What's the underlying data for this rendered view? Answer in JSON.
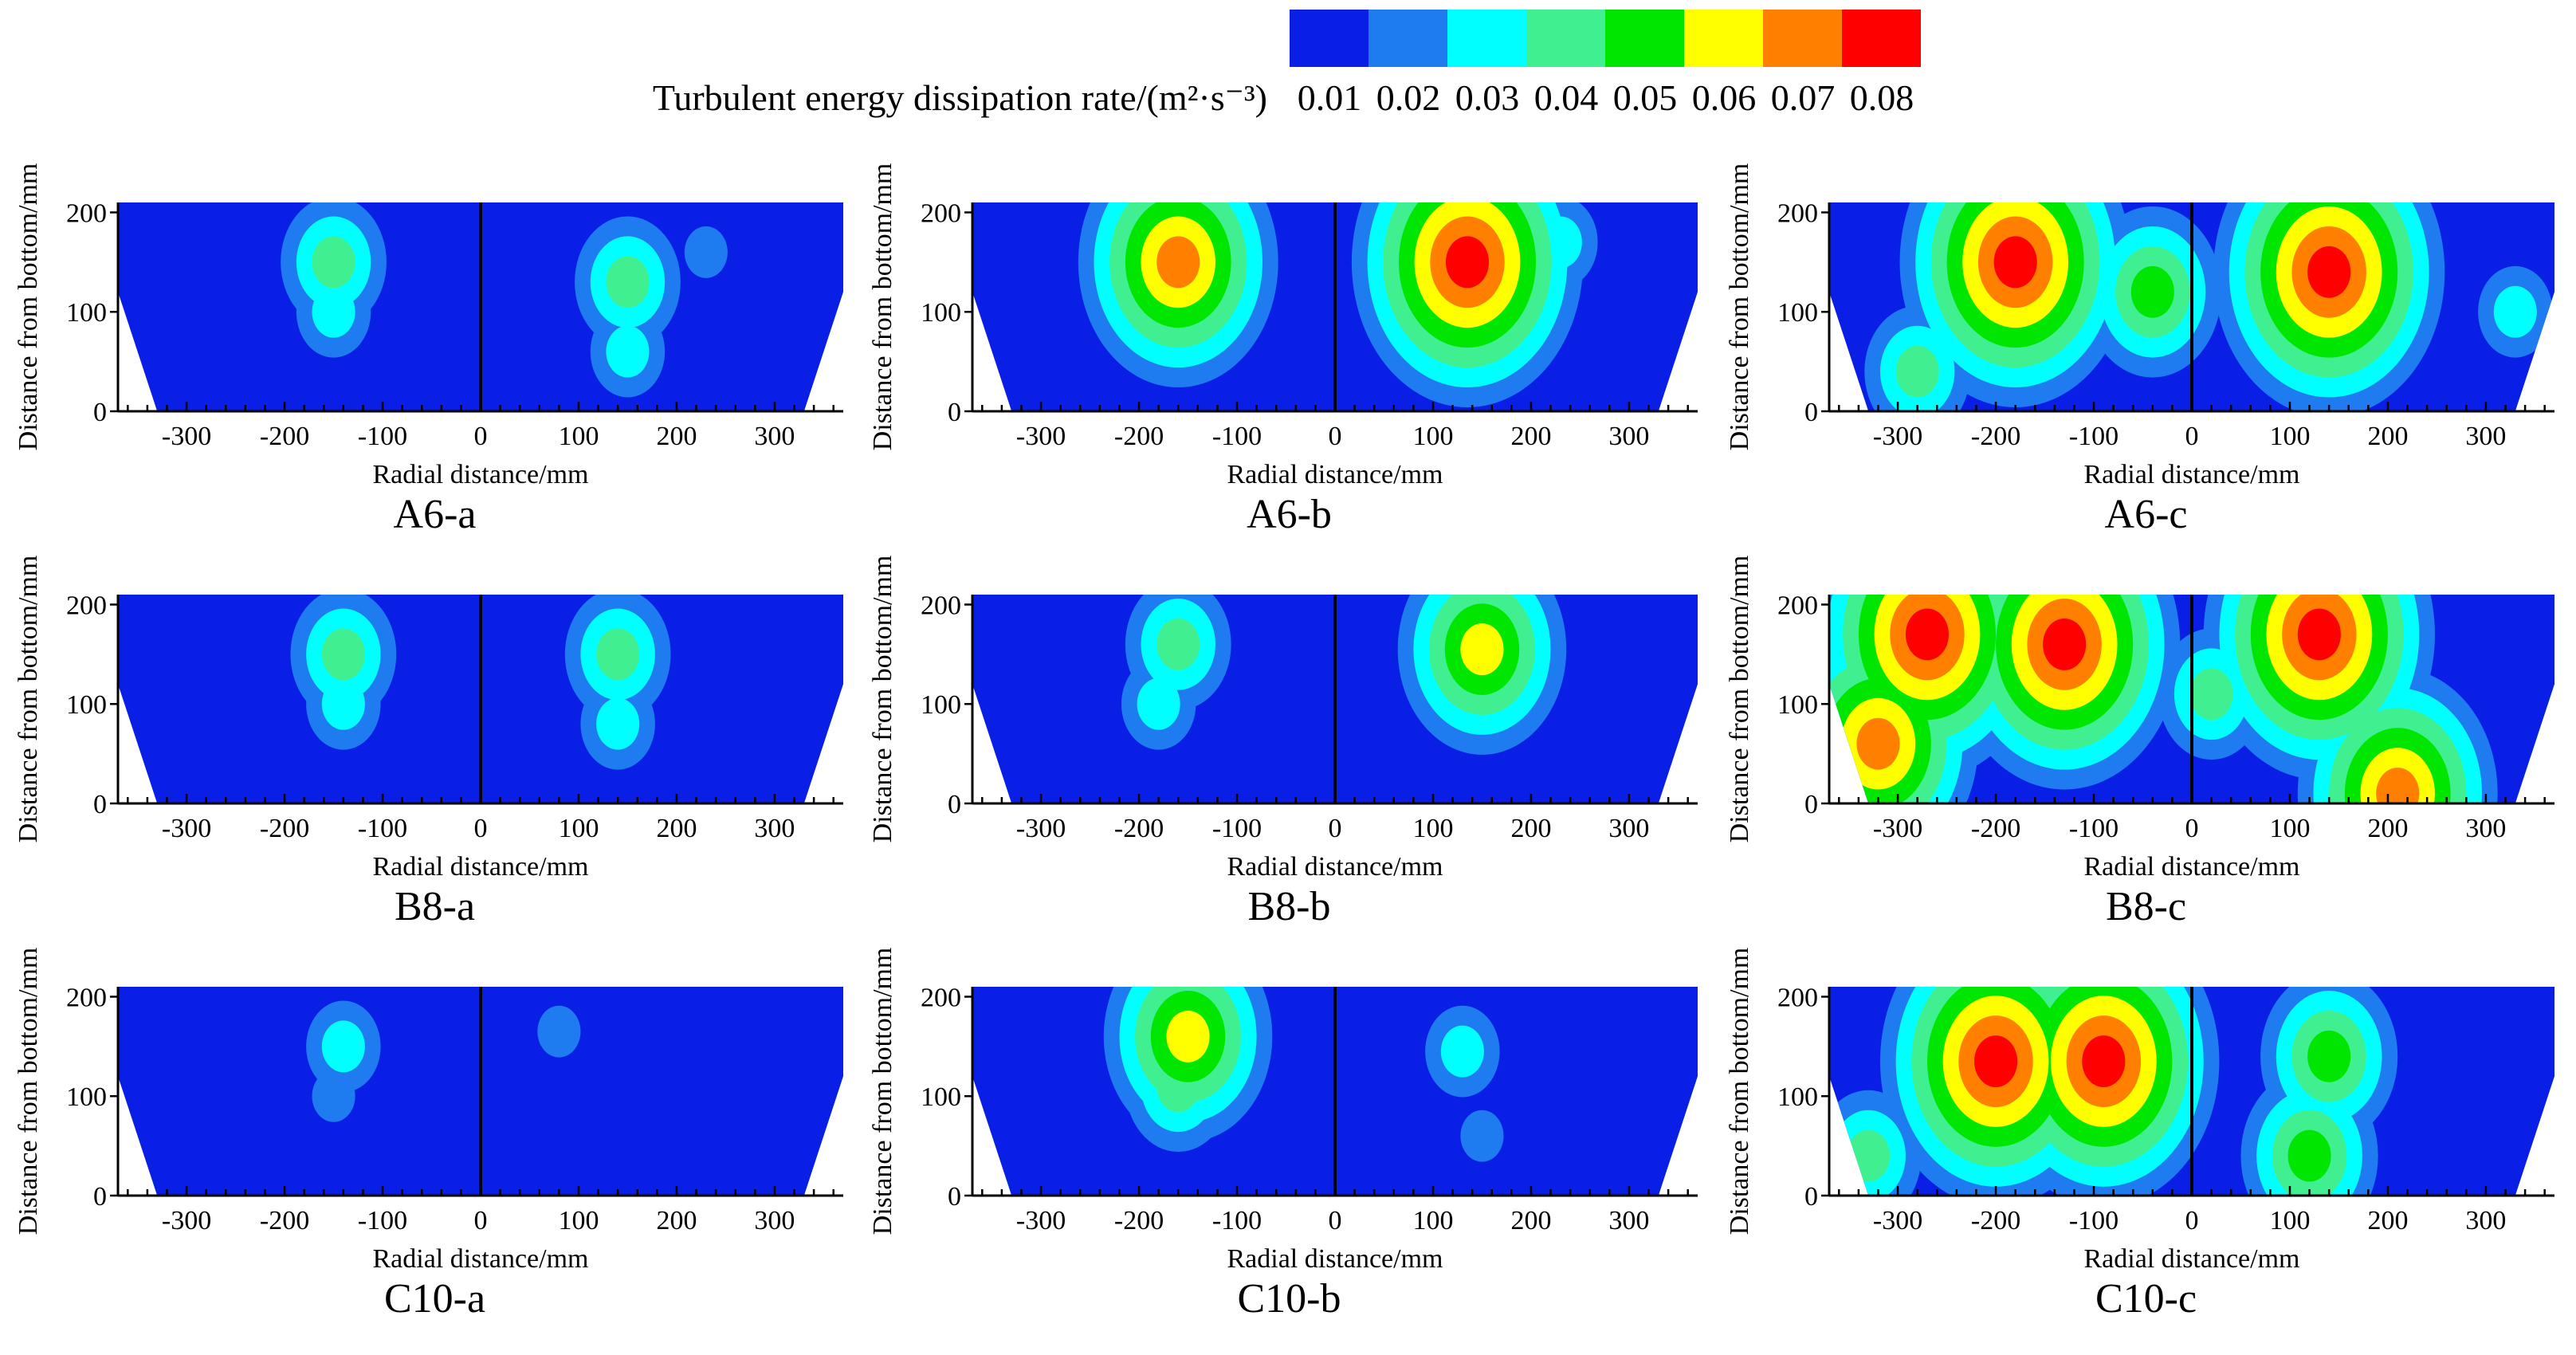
{
  "legend": {
    "title": "Turbulent energy dissipation rate/(m²·s⁻³)",
    "tick_labels": [
      "0.01",
      "0.02",
      "0.03",
      "0.04",
      "0.05",
      "0.06",
      "0.07",
      "0.08"
    ],
    "colors": [
      "#0a1fe6",
      "#1e7cf0",
      "#00ffff",
      "#40f090",
      "#00e600",
      "#ffff00",
      "#ff7f00",
      "#ff0000"
    ]
  },
  "chart_data": [
    {
      "type": "heatmap",
      "title": "A6-a",
      "xlabel": "Radial distance/mm",
      "ylabel": "Distance from bottom/mm",
      "xticks": [
        "-300",
        "-200",
        "-100",
        "0",
        "100",
        "200",
        "300"
      ],
      "yticks": [
        "0",
        "100",
        "200"
      ],
      "xlim": [
        -370,
        370
      ],
      "ylim": [
        0,
        210
      ],
      "hotspots": [
        {
          "x": -150,
          "y": 150,
          "level": 4
        },
        {
          "x": -150,
          "y": 100,
          "level": 3
        },
        {
          "x": 150,
          "y": 130,
          "level": 4
        },
        {
          "x": 150,
          "y": 60,
          "level": 3
        },
        {
          "x": 230,
          "y": 160,
          "level": 2
        }
      ]
    },
    {
      "type": "heatmap",
      "title": "A6-b",
      "xlabel": "Radial distance/mm",
      "ylabel": "Distance from bottom/mm",
      "xticks": [
        "-300",
        "-200",
        "-100",
        "0",
        "100",
        "200",
        "300"
      ],
      "yticks": [
        "0",
        "100",
        "200"
      ],
      "xlim": [
        -370,
        370
      ],
      "ylim": [
        0,
        210
      ],
      "hotspots": [
        {
          "x": -160,
          "y": 150,
          "level": 7
        },
        {
          "x": -160,
          "y": 150,
          "level": 4
        },
        {
          "x": 135,
          "y": 150,
          "level": 8
        },
        {
          "x": 135,
          "y": 120,
          "level": 4
        },
        {
          "x": 230,
          "y": 170,
          "level": 3
        }
      ]
    },
    {
      "type": "heatmap",
      "title": "A6-c",
      "xlabel": "Radial distance/mm",
      "ylabel": "Distance from bottom/mm",
      "xticks": [
        "-300",
        "-200",
        "-100",
        "0",
        "100",
        "200",
        "300"
      ],
      "yticks": [
        "0",
        "100",
        "200"
      ],
      "xlim": [
        -370,
        370
      ],
      "ylim": [
        0,
        210
      ],
      "hotspots": [
        {
          "x": -180,
          "y": 150,
          "level": 8
        },
        {
          "x": 140,
          "y": 140,
          "level": 8
        },
        {
          "x": -40,
          "y": 120,
          "level": 5
        },
        {
          "x": -280,
          "y": 40,
          "level": 4
        },
        {
          "x": 330,
          "y": 100,
          "level": 3
        }
      ]
    },
    {
      "type": "heatmap",
      "title": "B8-a",
      "xlabel": "Radial distance/mm",
      "ylabel": "Distance from bottom/mm",
      "xticks": [
        "-300",
        "-200",
        "-100",
        "0",
        "100",
        "200",
        "300"
      ],
      "yticks": [
        "0",
        "100",
        "200"
      ],
      "xlim": [
        -370,
        370
      ],
      "ylim": [
        0,
        210
      ],
      "hotspots": [
        {
          "x": -140,
          "y": 150,
          "level": 4
        },
        {
          "x": -140,
          "y": 100,
          "level": 3
        },
        {
          "x": 140,
          "y": 150,
          "level": 4
        },
        {
          "x": 140,
          "y": 80,
          "level": 3
        }
      ]
    },
    {
      "type": "heatmap",
      "title": "B8-b",
      "xlabel": "Radial distance/mm",
      "ylabel": "Distance from bottom/mm",
      "xticks": [
        "-300",
        "-200",
        "-100",
        "0",
        "100",
        "200",
        "300"
      ],
      "yticks": [
        "0",
        "100",
        "200"
      ],
      "xlim": [
        -370,
        370
      ],
      "ylim": [
        0,
        210
      ],
      "hotspots": [
        {
          "x": -160,
          "y": 160,
          "level": 4
        },
        {
          "x": -180,
          "y": 100,
          "level": 3
        },
        {
          "x": 150,
          "y": 155,
          "level": 6
        },
        {
          "x": 150,
          "y": 120,
          "level": 4
        }
      ]
    },
    {
      "type": "heatmap",
      "title": "B8-c",
      "xlabel": "Radial distance/mm",
      "ylabel": "Distance from bottom/mm",
      "xticks": [
        "-300",
        "-200",
        "-100",
        "0",
        "100",
        "200",
        "300"
      ],
      "yticks": [
        "0",
        "100",
        "200"
      ],
      "xlim": [
        -370,
        370
      ],
      "ylim": [
        0,
        210
      ],
      "hotspots": [
        {
          "x": -270,
          "y": 170,
          "level": 8
        },
        {
          "x": -130,
          "y": 160,
          "level": 8
        },
        {
          "x": 130,
          "y": 170,
          "level": 8
        },
        {
          "x": -320,
          "y": 60,
          "level": 7
        },
        {
          "x": 210,
          "y": 10,
          "level": 7
        },
        {
          "x": 20,
          "y": 110,
          "level": 4
        }
      ]
    },
    {
      "type": "heatmap",
      "title": "C10-a",
      "xlabel": "Radial distance/mm",
      "ylabel": "Distance from bottom/mm",
      "xticks": [
        "-300",
        "-200",
        "-100",
        "0",
        "100",
        "200",
        "300"
      ],
      "yticks": [
        "0",
        "100",
        "200"
      ],
      "xlim": [
        -370,
        370
      ],
      "ylim": [
        0,
        210
      ],
      "hotspots": [
        {
          "x": -140,
          "y": 150,
          "level": 3
        },
        {
          "x": -150,
          "y": 100,
          "level": 2
        },
        {
          "x": 80,
          "y": 165,
          "level": 2
        }
      ]
    },
    {
      "type": "heatmap",
      "title": "C10-b",
      "xlabel": "Radial distance/mm",
      "ylabel": "Distance from bottom/mm",
      "xticks": [
        "-300",
        "-200",
        "-100",
        "0",
        "100",
        "200",
        "300"
      ],
      "yticks": [
        "0",
        "100",
        "200"
      ],
      "xlim": [
        -370,
        370
      ],
      "ylim": [
        0,
        210
      ],
      "hotspots": [
        {
          "x": -150,
          "y": 160,
          "level": 6
        },
        {
          "x": -160,
          "y": 110,
          "level": 4
        },
        {
          "x": 130,
          "y": 145,
          "level": 3
        },
        {
          "x": 150,
          "y": 60,
          "level": 2
        }
      ]
    },
    {
      "type": "heatmap",
      "title": "C10-c",
      "xlabel": "Radial distance/mm",
      "ylabel": "Distance from bottom/mm",
      "xticks": [
        "-300",
        "-200",
        "-100",
        "0",
        "100",
        "200",
        "300"
      ],
      "yticks": [
        "0",
        "100",
        "200"
      ],
      "xlim": [
        -370,
        370
      ],
      "ylim": [
        0,
        210
      ],
      "hotspots": [
        {
          "x": -200,
          "y": 135,
          "level": 8
        },
        {
          "x": -90,
          "y": 135,
          "level": 8
        },
        {
          "x": 140,
          "y": 140,
          "level": 5
        },
        {
          "x": 120,
          "y": 40,
          "level": 5
        },
        {
          "x": -330,
          "y": 40,
          "level": 4
        }
      ]
    }
  ]
}
